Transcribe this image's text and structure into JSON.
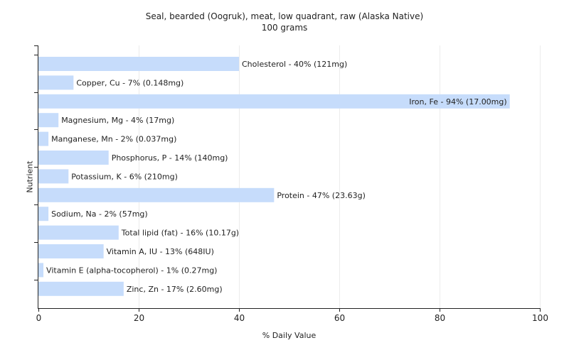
{
  "chart_data": {
    "type": "bar",
    "orientation": "horizontal",
    "title": "Seal, bearded (Oogruk), meat, low quadrant, raw (Alaska Native)",
    "subtitle": "100 grams",
    "xlabel": "% Daily Value",
    "ylabel": "Nutrient",
    "xlim": [
      0,
      100
    ],
    "xticks": [
      0,
      20,
      40,
      60,
      80,
      100
    ],
    "grid": true,
    "bar_color": "#c6dcfb",
    "categories": [
      "Cholesterol",
      "Copper, Cu",
      "Iron, Fe",
      "Magnesium, Mg",
      "Manganese, Mn",
      "Phosphorus, P",
      "Potassium, K",
      "Protein",
      "Sodium, Na",
      "Total lipid (fat)",
      "Vitamin A, IU",
      "Vitamin E (alpha-tocopherol)",
      "Zinc, Zn"
    ],
    "values": [
      40,
      7,
      94,
      4,
      2,
      14,
      6,
      47,
      2,
      16,
      13,
      1,
      17
    ],
    "labels": [
      "Cholesterol - 40% (121mg)",
      "Copper, Cu - 7% (0.148mg)",
      "Iron, Fe - 94% (17.00mg)",
      "Magnesium, Mg - 4% (17mg)",
      "Manganese, Mn - 2% (0.037mg)",
      "Phosphorus, P - 14% (140mg)",
      "Potassium, K - 6% (210mg)",
      "Protein - 47% (23.63g)",
      "Sodium, Na - 2% (57mg)",
      "Total lipid (fat) - 16% (10.17g)",
      "Vitamin A, IU - 13% (648IU)",
      "Vitamin E (alpha-tocopherol) - 1% (0.27mg)",
      "Zinc, Zn - 17% (2.60mg)"
    ]
  }
}
